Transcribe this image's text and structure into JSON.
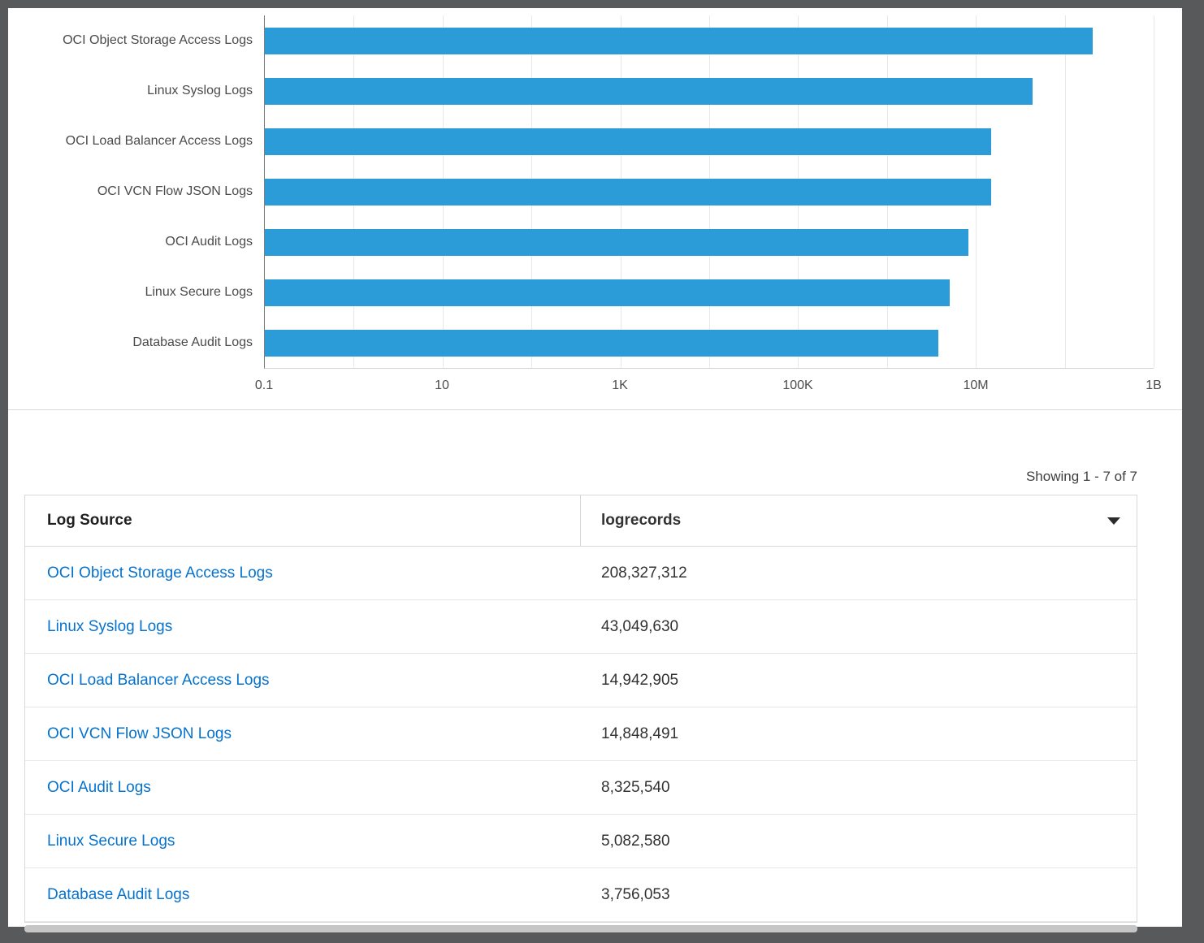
{
  "frame": {
    "background_color": "#58595b",
    "panel_color": "#ffffff"
  },
  "chart_data": {
    "type": "bar",
    "orientation": "horizontal",
    "title": "",
    "xlabel": "",
    "ylabel": "",
    "x_scale": "log",
    "xmin": 0.1,
    "xmax": 1000000000,
    "grid": true,
    "legend": "none",
    "bar_color": "#2b9cd8",
    "categories": [
      "OCI Object Storage Access Logs",
      "Linux Syslog Logs",
      "OCI Load Balancer Access Logs",
      "OCI VCN Flow JSON Logs",
      "OCI Audit Logs",
      "Linux Secure Logs",
      "Database Audit Logs"
    ],
    "values": [
      208327312,
      43049630,
      14942905,
      14848491,
      8325540,
      5082580,
      3756053
    ],
    "x_ticks": [
      "0.1",
      "10",
      "1K",
      "100K",
      "10M",
      "1B"
    ],
    "x_tick_values": [
      0.1,
      10,
      1000,
      100000,
      10000000,
      1000000000
    ]
  },
  "table": {
    "showing_text": "Showing 1 - 7 of 7",
    "link_color": "#0572ce",
    "columns": [
      {
        "label": "Log Source"
      },
      {
        "label": "logrecords",
        "sort": "descending"
      }
    ],
    "rows": [
      {
        "source": "OCI Object Storage Access Logs",
        "records": "208,327,312"
      },
      {
        "source": "Linux Syslog Logs",
        "records": "43,049,630"
      },
      {
        "source": "OCI Load Balancer Access Logs",
        "records": "14,942,905"
      },
      {
        "source": "OCI VCN Flow JSON Logs",
        "records": "14,848,491"
      },
      {
        "source": "OCI Audit Logs",
        "records": "8,325,540"
      },
      {
        "source": "Linux Secure Logs",
        "records": "5,082,580"
      },
      {
        "source": "Database Audit Logs",
        "records": "3,756,053"
      }
    ]
  }
}
